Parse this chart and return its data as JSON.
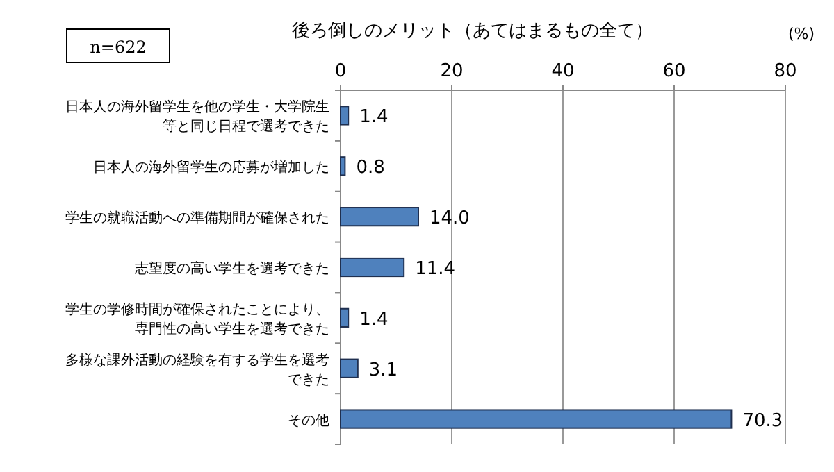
{
  "chart_data": {
    "type": "bar",
    "orientation": "horizontal",
    "title": "後ろ倒しのメリット（あてはまるもの全て）",
    "categories": [
      "日本人の海外留学生を他の学生・大学院生等と同じ日程で選考できた",
      "日本人の海外留学生の応募が増加した",
      "学生の就職活動への準備期間が確保された",
      "志望度の高い学生を選考できた",
      "学生の学修時間が確保されたことにより、専門性の高い学生を選考できた",
      "多様な課外活動の経験を有する学生を選考できた",
      "その他"
    ],
    "values": [
      1.4,
      0.8,
      14.0,
      11.4,
      1.4,
      3.1,
      70.3
    ],
    "value_labels": [
      "1.4",
      "0.8",
      "14.0",
      "11.4",
      "1.4",
      "3.1",
      "70.3"
    ],
    "color": "#4f81bd",
    "xlim": [
      0,
      80
    ],
    "xticks": [
      0,
      20,
      40,
      60,
      80
    ],
    "grid": "x",
    "annotations": [
      "n=622",
      "(%)"
    ]
  }
}
